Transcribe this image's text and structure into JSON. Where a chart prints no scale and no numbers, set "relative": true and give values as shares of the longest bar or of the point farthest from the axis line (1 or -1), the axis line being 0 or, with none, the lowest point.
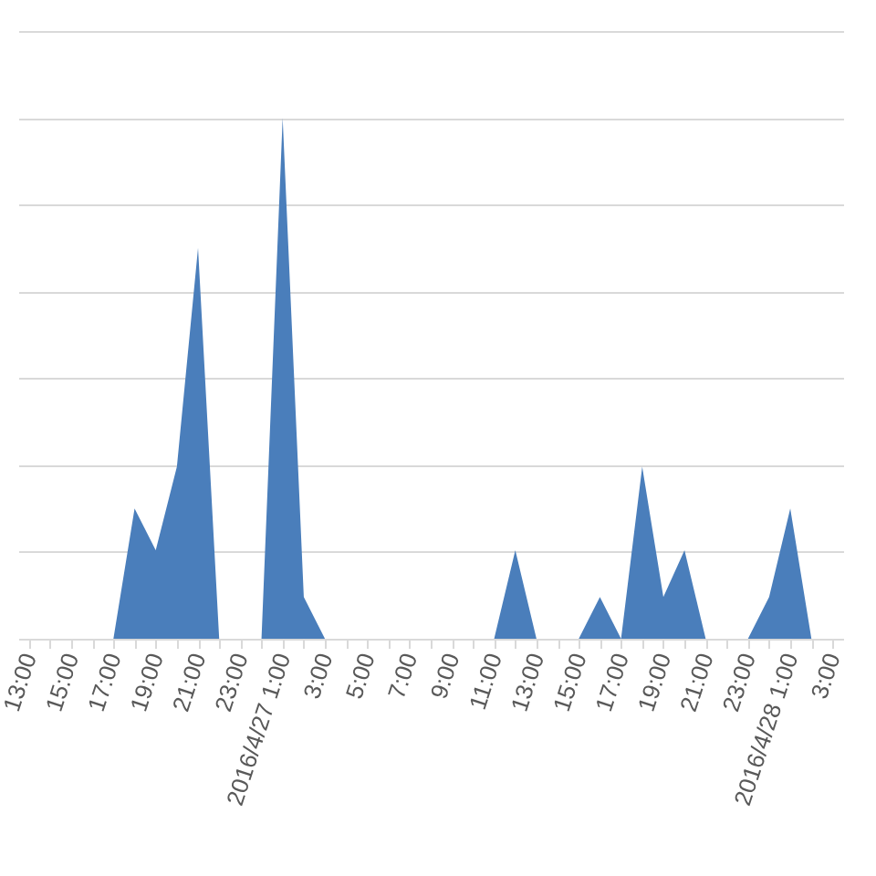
{
  "chart_data": {
    "type": "area",
    "grid": "y",
    "relative": true,
    "color": "#4a7ebb",
    "categories": [
      "13:00",
      null,
      "15:00",
      null,
      "17:00",
      null,
      "19:00",
      null,
      "21:00",
      null,
      "23:00",
      null,
      "2016/4/27 1:00",
      null,
      "3:00",
      null,
      "5:00",
      null,
      "7:00",
      null,
      "9:00",
      null,
      "11:00",
      null,
      "13:00",
      null,
      "15:00",
      null,
      "17:00",
      null,
      "19:00",
      null,
      "21:00",
      null,
      "23:00",
      null,
      "2016/4/28 1:00",
      null,
      "3:00"
    ],
    "values": [
      0,
      0,
      0,
      0,
      0,
      0.25,
      0.17,
      0.33,
      0.75,
      0,
      0,
      0,
      1,
      0.08,
      0,
      0,
      0,
      0,
      0,
      0,
      0,
      0,
      0,
      0.17,
      0,
      0,
      0,
      0.08,
      0,
      0.33,
      0.08,
      0.17,
      0,
      0,
      0,
      0.08,
      0.25,
      0,
      0
    ]
  }
}
